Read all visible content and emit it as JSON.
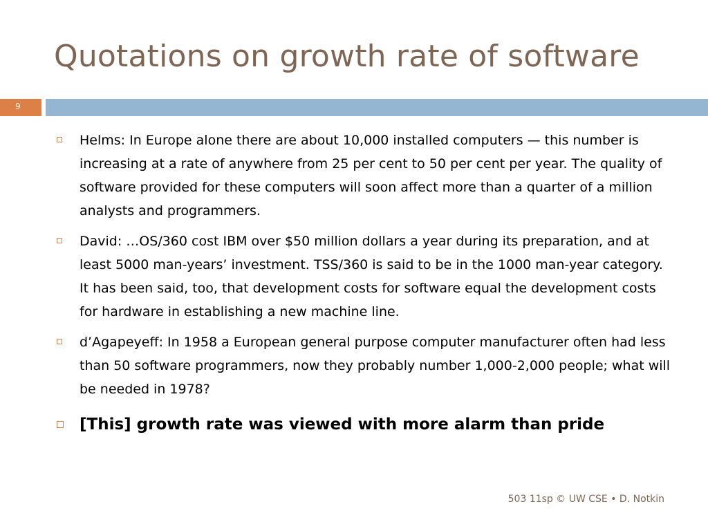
{
  "slide": {
    "title": "Quotations on growth rate of software",
    "number": "9",
    "footer": "503 11sp © UW CSE  • D. Notkin"
  },
  "bullets": [
    {
      "text": "Helms: In Europe alone there are about 10,000 installed computers — this number is increasing at a rate of anywhere  from 25 per cent to 50 per cent per year. The quality of software provided for these computers will soon affect  more than a quarter of a million analysts and programmers."
    },
    {
      "text": "David: …OS/360 cost IBM over $50 million dollars a year during its preparation, and at least 5000 man-years’ investment. TSS/360 is said to be in the 1000 man-year category. It has been said, too, that development costs for software equal the development costs for hardware in establishing a new machine line."
    },
    {
      "text": "d’Agapeyeff: In 1958 a European general purpose computer manufacturer often had less than 50 software programmers, now they probably number 1,000-2,000 people; what will be needed in 1978?"
    },
    {
      "text": "[This] growth rate was viewed with more alarm than pride"
    }
  ],
  "colors": {
    "title": "#7f6654",
    "accent_orange": "#dd8047",
    "accent_blue": "#94b6d2",
    "text": "#000000"
  },
  "icons": {
    "bullet": "hollow-square-icon"
  }
}
